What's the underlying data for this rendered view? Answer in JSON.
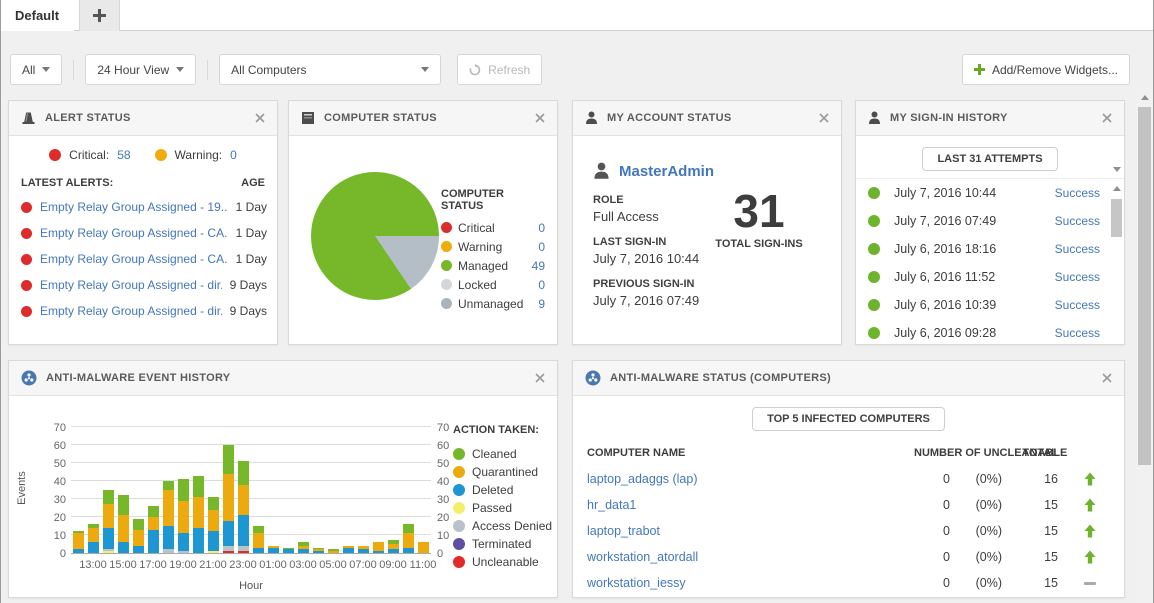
{
  "tabs": {
    "active_label": "Default"
  },
  "toolbar": {
    "scope_value": "All",
    "time_range_value": "24 Hour View",
    "computers_value": "All Computers",
    "refresh_label": "Refresh",
    "add_widgets_label": "Add/Remove Widgets..."
  },
  "colors": {
    "link": "#4377bd",
    "critical_red": "#dd2c2c",
    "warning_yellow": "#eead0c",
    "managed_green": "#76b82a",
    "locked_gray": "#d3d7da",
    "unmanaged_gray": "#a9b4bd",
    "success_green": "#6db32b"
  },
  "widgets": {
    "alert_status": {
      "title": "ALERT STATUS",
      "critical_label": "Critical:",
      "critical_value": "58",
      "warning_label": "Warning:",
      "warning_value": "0",
      "list_header": "LATEST ALERTS:",
      "age_header": "AGE",
      "alerts": [
        {
          "title": "Empty Relay Group Assigned - 19...",
          "age": "1 Day"
        },
        {
          "title": "Empty Relay Group Assigned - CA...",
          "age": "1 Day"
        },
        {
          "title": "Empty Relay Group Assigned - CA...",
          "age": "1 Day"
        },
        {
          "title": "Empty Relay Group Assigned - dir...",
          "age": "9 Days"
        },
        {
          "title": "Empty Relay Group Assigned - dir...",
          "age": "9 Days"
        }
      ]
    },
    "computer_status": {
      "title": "COMPUTER STATUS",
      "legend_title": "COMPUTER STATUS",
      "items": [
        {
          "label": "Critical",
          "value": "0",
          "color": "#dd2c2c"
        },
        {
          "label": "Warning",
          "value": "0",
          "color": "#eead0c"
        },
        {
          "label": "Managed",
          "value": "49",
          "color": "#76b82a"
        },
        {
          "label": "Locked",
          "value": "0",
          "color": "#d3d7da"
        },
        {
          "label": "Unmanaged",
          "value": "9",
          "color": "#a9b4bd"
        }
      ]
    },
    "account_status": {
      "title": "MY ACCOUNT STATUS",
      "username": "MasterAdmin",
      "role_label": "ROLE",
      "role_value": "Full Access",
      "last_label": "LAST SIGN-IN",
      "last_value": "July 7, 2016 10:44",
      "prev_label": "PREVIOUS SIGN-IN",
      "prev_value": "July 7, 2016 07:49",
      "total_value": "31",
      "total_label": "TOTAL SIGN-INS"
    },
    "signin_history": {
      "title": "MY SIGN-IN HISTORY",
      "button_label": "LAST 31 ATTEMPTS",
      "entries": [
        {
          "date": "July 7, 2016 10:44",
          "status": "Success"
        },
        {
          "date": "July 7, 2016 07:49",
          "status": "Success"
        },
        {
          "date": "July 6, 2016 18:16",
          "status": "Success"
        },
        {
          "date": "July 6, 2016 11:52",
          "status": "Success"
        },
        {
          "date": "July 6, 2016 10:39",
          "status": "Success"
        },
        {
          "date": "July 6, 2016 09:28",
          "status": "Success"
        }
      ]
    },
    "am_history": {
      "title": "ANTI-MALWARE EVENT HISTORY",
      "legend_title": "ACTION TAKEN:"
    },
    "am_status": {
      "title": "ANTI-MALWARE STATUS (COMPUTERS)",
      "button_label": "TOP 5 INFECTED COMPUTERS",
      "col_name": "COMPUTER NAME",
      "col_uncleanable": "NUMBER OF UNCLEANABLE",
      "col_total": "TOTAL",
      "rows": [
        {
          "name": "laptop_adaggs (lap)",
          "uncleanable": "0",
          "pct": "(0%)",
          "total": "16",
          "trend": "up"
        },
        {
          "name": "hr_data1",
          "uncleanable": "0",
          "pct": "(0%)",
          "total": "15",
          "trend": "up"
        },
        {
          "name": "laptop_trabot",
          "uncleanable": "0",
          "pct": "(0%)",
          "total": "15",
          "trend": "up"
        },
        {
          "name": "workstation_atordall",
          "uncleanable": "0",
          "pct": "(0%)",
          "total": "15",
          "trend": "up"
        },
        {
          "name": "workstation_iessy",
          "uncleanable": "0",
          "pct": "(0%)",
          "total": "15",
          "trend": "flat"
        }
      ]
    }
  },
  "chart_data": [
    {
      "type": "pie",
      "title": "COMPUTER STATUS",
      "start_angle_deg": 90,
      "slices": [
        {
          "label": "Managed",
          "value": 49,
          "color": "#76b82a"
        },
        {
          "label": "Unmanaged",
          "value": 9,
          "color": "#b4bec6"
        }
      ],
      "legend_zero_items": [
        "Critical",
        "Warning",
        "Locked"
      ]
    },
    {
      "type": "bar",
      "stacked": true,
      "title": "ANTI-MALWARE EVENT HISTORY",
      "xlabel": "Hour",
      "ylabel": "Events",
      "ylim": [
        0,
        70
      ],
      "y_ticks": [
        0,
        10,
        20,
        30,
        40,
        50,
        60,
        70
      ],
      "x": [
        "12:00",
        "13:00",
        "14:00",
        "15:00",
        "16:00",
        "17:00",
        "18:00",
        "19:00",
        "20:00",
        "21:00",
        "22:00",
        "23:00",
        "00:00",
        "01:00",
        "02:00",
        "03:00",
        "04:00",
        "05:00",
        "06:00",
        "07:00",
        "08:00",
        "09:00",
        "10:00",
        "11:00"
      ],
      "x_tick_labels": [
        "13:00",
        "15:00",
        "17:00",
        "19:00",
        "21:00",
        "23:00",
        "01:00",
        "03:00",
        "05:00",
        "07:00",
        "09:00",
        "11:00"
      ],
      "stack_order_bottom_to_top": [
        "Passed",
        "Uncleanable",
        "Access Denied",
        "Deleted",
        "Quarantined",
        "Cleaned"
      ],
      "series": [
        {
          "name": "Cleaned",
          "color": "#76b82a",
          "values": [
            1,
            2,
            8,
            11,
            6,
            6,
            5,
            12,
            12,
            7,
            16,
            13,
            4,
            0,
            1,
            2,
            1,
            1,
            0,
            0,
            0,
            2,
            5,
            0
          ]
        },
        {
          "name": "Quarantined",
          "color": "#edaa0f",
          "values": [
            9,
            8,
            13,
            15,
            9,
            7,
            20,
            18,
            17,
            12,
            26,
            17,
            8,
            1,
            0,
            2,
            1,
            1,
            1,
            2,
            5,
            3,
            8,
            6
          ]
        },
        {
          "name": "Deleted",
          "color": "#1e96d2",
          "values": [
            2,
            6,
            12,
            6,
            4,
            13,
            13,
            10,
            14,
            11,
            14,
            17,
            3,
            3,
            2,
            2,
            1,
            0,
            3,
            2,
            1,
            2,
            3,
            0
          ]
        },
        {
          "name": "Passed",
          "color": "#f3ef6d",
          "values": [
            0,
            0,
            1,
            0,
            0,
            0,
            0,
            0,
            0,
            1,
            0,
            0,
            0,
            0,
            0,
            0,
            0,
            0,
            0,
            0,
            0,
            0,
            0,
            0
          ]
        },
        {
          "name": "Access Denied",
          "color": "#b9c2c8",
          "values": [
            0,
            0,
            1,
            0,
            0,
            0,
            2,
            1,
            0,
            0,
            3,
            3,
            0,
            0,
            0,
            0,
            0,
            0,
            0,
            0,
            0,
            0,
            0,
            0
          ]
        },
        {
          "name": "Terminated",
          "color": "#5e4fa2",
          "values": [
            0,
            0,
            0,
            0,
            0,
            0,
            0,
            0,
            0,
            0,
            0,
            0,
            0,
            0,
            0,
            0,
            0,
            0,
            0,
            0,
            0,
            0,
            0,
            0
          ]
        },
        {
          "name": "Uncleanable",
          "color": "#e02b2b",
          "values": [
            0,
            0,
            0,
            0,
            0,
            0,
            0,
            0,
            0,
            0,
            1,
            1,
            0,
            0,
            0,
            0,
            0,
            0,
            0,
            0,
            0,
            0,
            0,
            0
          ]
        }
      ]
    }
  ]
}
